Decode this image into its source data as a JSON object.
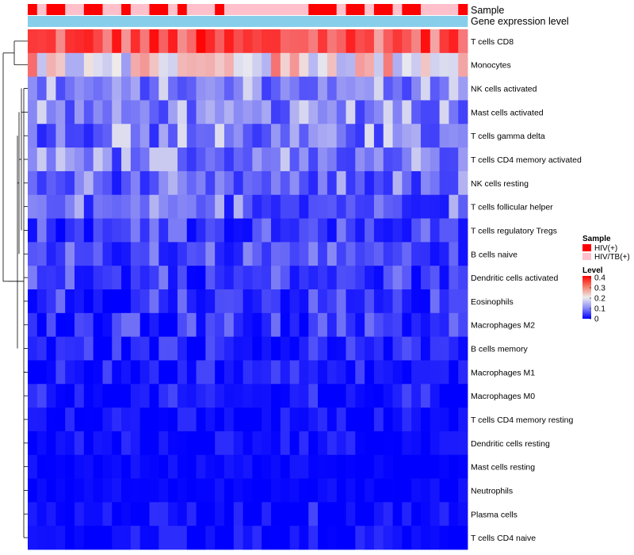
{
  "chart_data": {
    "type": "heatmap",
    "title": "",
    "annotations": [
      {
        "name": "Sample",
        "label": "Sample"
      },
      {
        "name": "Gene expression level",
        "label": "Gene expression level"
      }
    ],
    "n_columns": 47,
    "sample_annotation": [
      0,
      1,
      0,
      0,
      1,
      1,
      0,
      0,
      1,
      1,
      0,
      1,
      1,
      0,
      0,
      1,
      0,
      1,
      1,
      1,
      0,
      1,
      1,
      1,
      1,
      1,
      1,
      1,
      1,
      1,
      0,
      0,
      0,
      1,
      0,
      0,
      1,
      0,
      0,
      1,
      0,
      0,
      1,
      1,
      1,
      1,
      0
    ],
    "gene_expression_level_annotation": [
      0,
      0,
      0,
      0,
      0,
      0,
      0,
      0,
      0,
      0,
      0,
      0,
      0,
      0,
      0,
      0,
      0,
      0,
      0,
      0,
      0,
      0,
      0,
      0,
      0,
      0,
      0,
      0,
      0,
      0,
      0,
      0,
      0,
      0,
      0,
      0,
      0,
      0,
      0,
      0,
      0,
      0,
      0,
      0,
      0,
      0,
      0
    ],
    "rows": [
      "T cells CD8",
      "Monocytes",
      "NK cells activated",
      "Mast cells activated",
      "T cells gamma delta",
      "T cells CD4 memory activated",
      "NK cells resting",
      "T cells follicular helper",
      "T cells regulatory  Tregs",
      "B cells naive",
      "Dendritic cells activated",
      "Eosinophils",
      "Macrophages M2",
      "B cells memory",
      "Macrophages M1",
      "Macrophages M0",
      "T cells CD4 memory resting",
      "Dendritic cells resting",
      "Mast cells resting",
      "Neutrophils",
      "Plasma cells",
      "T cells CD4 naive"
    ],
    "row_means": [
      0.33,
      0.22,
      0.1,
      0.1,
      0.09,
      0.09,
      0.07,
      0.07,
      0.04,
      0.05,
      0.04,
      0.03,
      0.03,
      0.02,
      0.01,
      0.01,
      0.005,
      0.005,
      0.003,
      0.002,
      0.01,
      0.005
    ],
    "row_spread": [
      0.07,
      0.09,
      0.05,
      0.05,
      0.06,
      0.05,
      0.05,
      0.05,
      0.04,
      0.04,
      0.04,
      0.04,
      0.04,
      0.03,
      0.03,
      0.03,
      0.02,
      0.02,
      0.01,
      0.01,
      0.03,
      0.02
    ],
    "color_scale": {
      "min": 0,
      "max": 0.4,
      "low_color": "#0000ff",
      "mid_color": "#eeeeee",
      "high_color": "#ff0000",
      "ticks": [
        "0.4",
        "0.3",
        "0.2",
        "0.1",
        "0"
      ]
    },
    "legend": {
      "sample_title": "Sample",
      "sample_entries": [
        {
          "label": "HIV(+)",
          "color": "#ff0000"
        },
        {
          "label": "HIV/TB(+)",
          "color": "#ffc0cb"
        }
      ],
      "level_title": "Level",
      "placement": "right"
    },
    "gene_expression_color": "#87ceeb",
    "row_dendrogram": true
  }
}
